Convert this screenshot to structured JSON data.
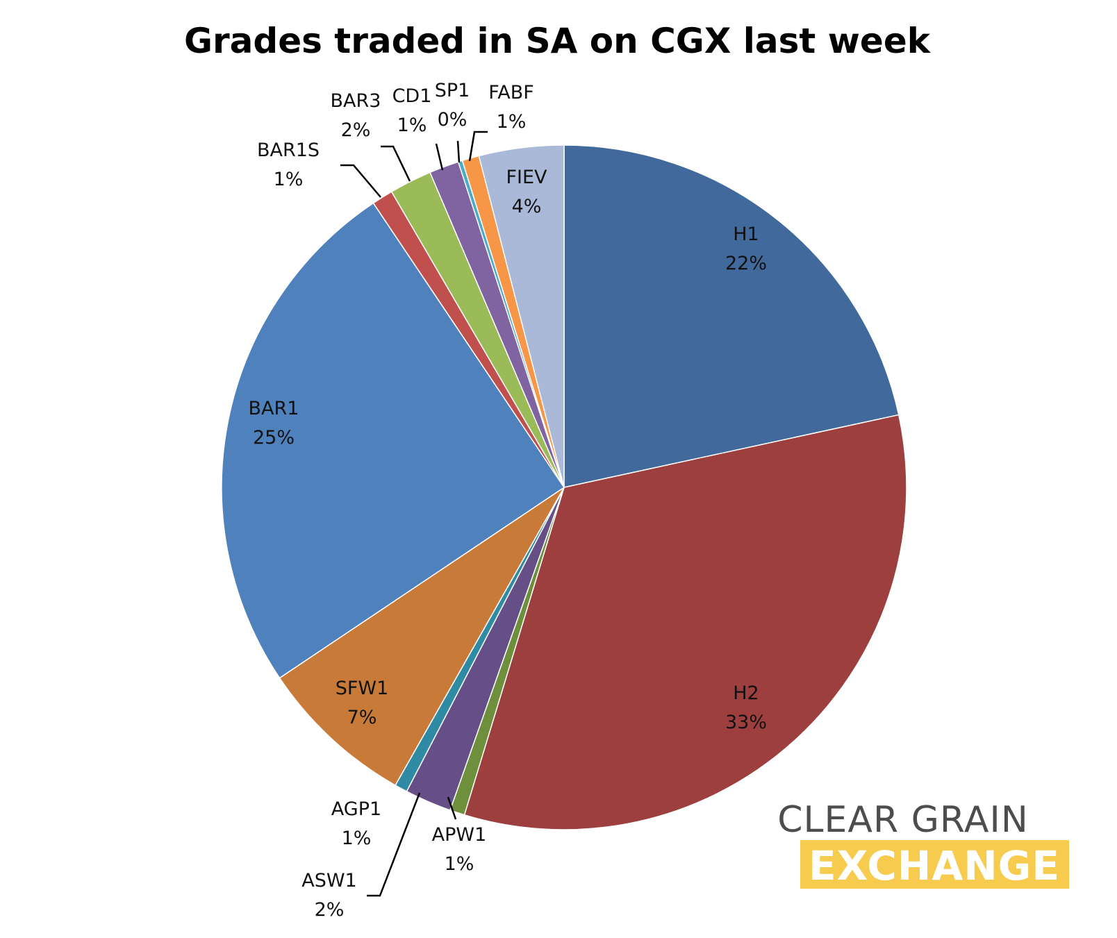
{
  "chart_data": {
    "type": "pie",
    "title": "Grades traded in SA on CGX last week",
    "slices": [
      {
        "name": "H1",
        "value": 21.6,
        "label": "22%",
        "color": "#41699b"
      },
      {
        "name": "H2",
        "value": 33.1,
        "label": "33%",
        "color": "#9c3f3e"
      },
      {
        "name": "APW1",
        "value": 0.7,
        "label": "1%",
        "color": "#6e8f3b"
      },
      {
        "name": "ASW1",
        "value": 2.2,
        "label": "2%",
        "color": "#664f86"
      },
      {
        "name": "AGP1",
        "value": 0.6,
        "label": "1%",
        "color": "#2f8aa3"
      },
      {
        "name": "SFW1",
        "value": 7.4,
        "label": "7%",
        "color": "#c87a38"
      },
      {
        "name": "BAR1",
        "value": 25.0,
        "label": "25%",
        "color": "#4f81bc"
      },
      {
        "name": "BAR1S",
        "value": 1.0,
        "label": "1%",
        "color": "#c0504d"
      },
      {
        "name": "BAR3",
        "value": 2.0,
        "label": "2%",
        "color": "#9bbb59"
      },
      {
        "name": "CD1",
        "value": 1.4,
        "label": "1%",
        "color": "#8064a2"
      },
      {
        "name": "SP1",
        "value": 0.2,
        "label": "0%",
        "color": "#4bacc6"
      },
      {
        "name": "FABF",
        "value": 0.8,
        "label": "1%",
        "color": "#f79646"
      },
      {
        "name": "FIEV",
        "value": 4.0,
        "label": "4%",
        "color": "#aab9d7"
      }
    ],
    "start_angle_deg": 0,
    "direction": "clockwise",
    "legend": "none"
  },
  "logo": {
    "top_text": "CLEAR GRAIN",
    "bottom_text": "EXCHANGE",
    "accent_color": "#f7cb4d",
    "text_color": "#4d4d4d"
  }
}
